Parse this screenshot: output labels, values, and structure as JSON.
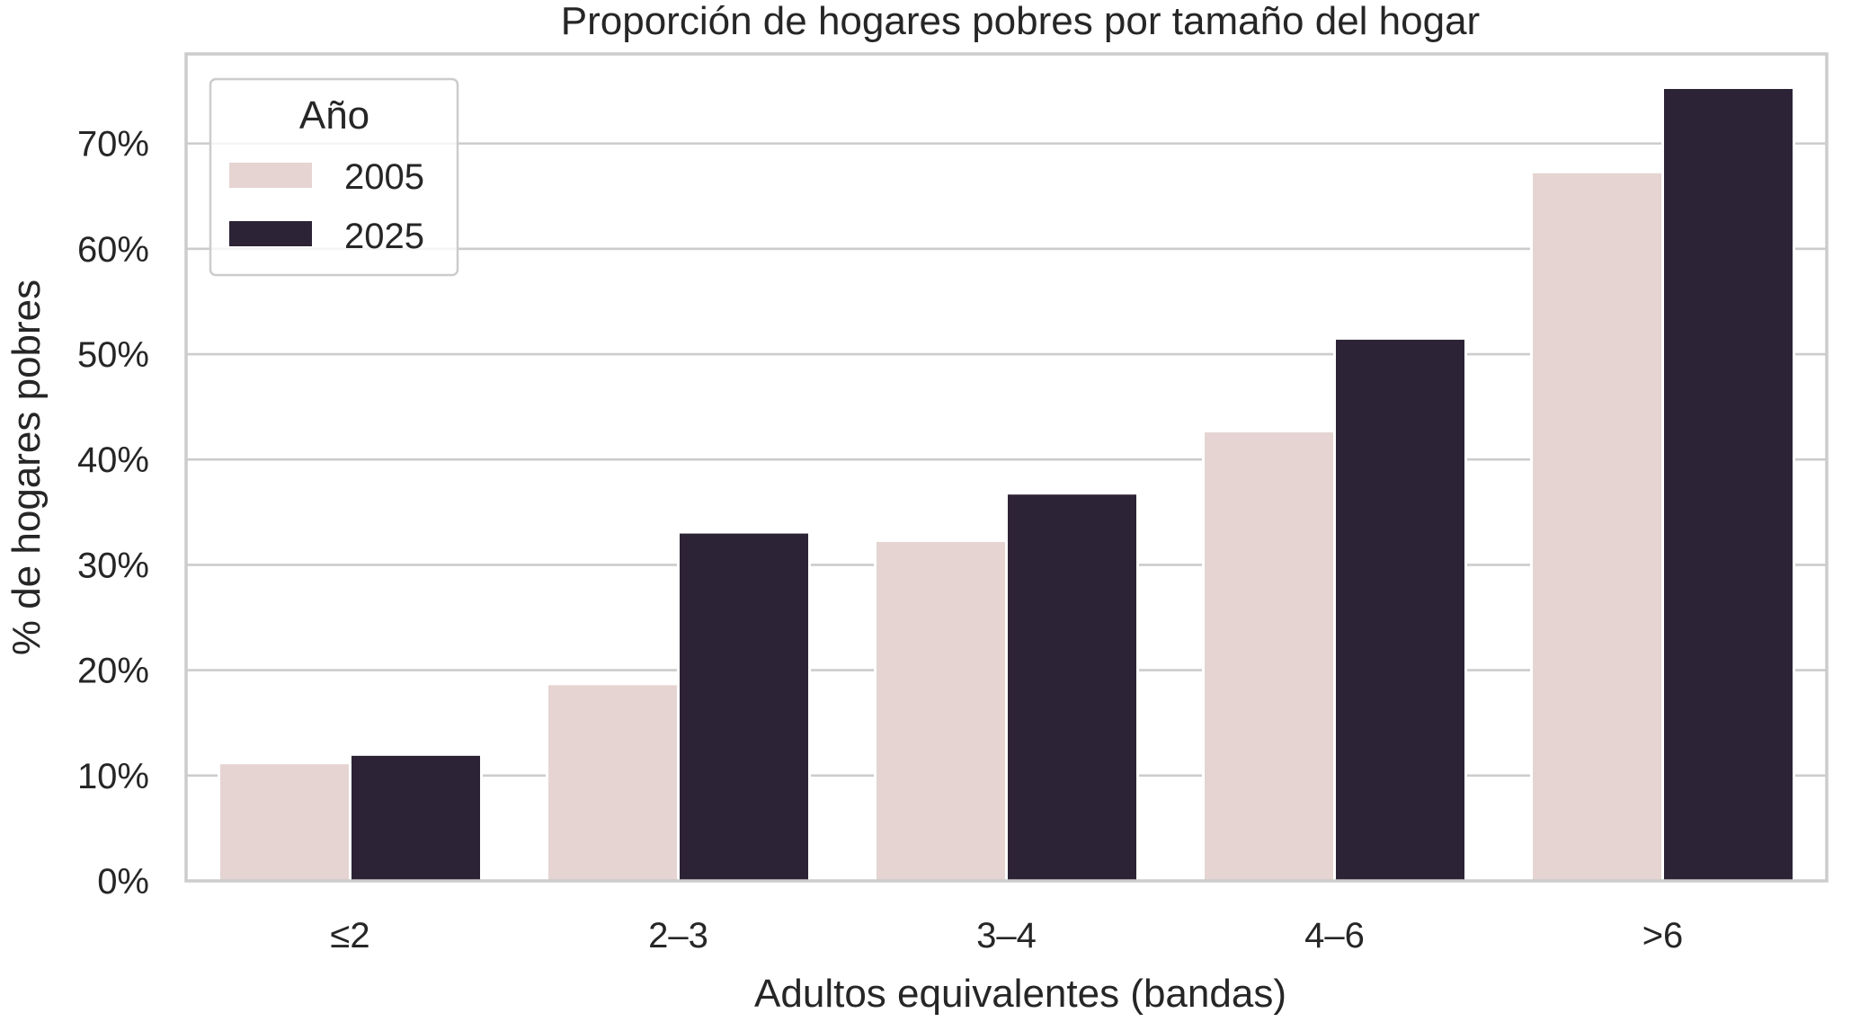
{
  "chart_data": {
    "type": "bar",
    "title": "Proporción de hogares pobres por tamaño del hogar",
    "xlabel": "Adultos equivalentes (bandas)",
    "ylabel": "% de hogares pobres",
    "categories": [
      "≤2",
      "2–3",
      "3–4",
      "4–6",
      ">6"
    ],
    "series": [
      {
        "name": "2005",
        "color": "#e5d4d2",
        "values": [
          11.2,
          18.7,
          32.3,
          42.7,
          67.3
        ]
      },
      {
        "name": "2025",
        "color": "#2d2337",
        "values": [
          12.0,
          33.1,
          36.8,
          51.5,
          75.3
        ]
      }
    ],
    "ylim": [
      0,
      78.5
    ],
    "yticks": [
      0,
      10,
      20,
      30,
      40,
      50,
      60,
      70
    ],
    "ytick_labels": [
      "0%",
      "10%",
      "20%",
      "30%",
      "40%",
      "50%",
      "60%",
      "70%"
    ],
    "grid": true,
    "legend": {
      "title": "Año",
      "placement": "top-left"
    }
  }
}
